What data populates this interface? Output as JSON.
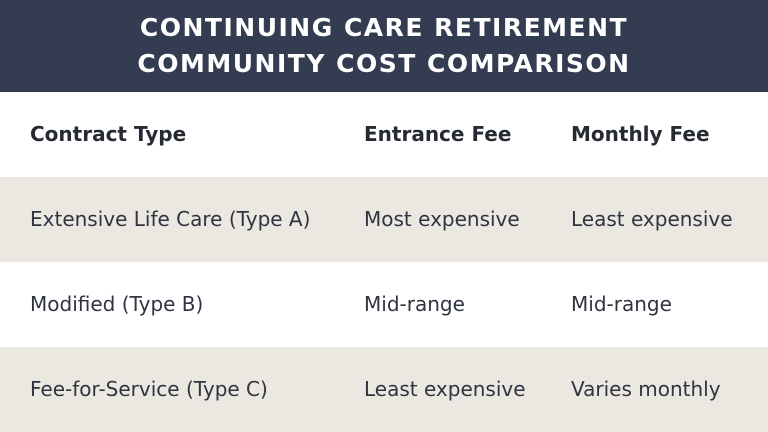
{
  "header": {
    "title_lines": [
      "CONTINUING CARE RETIREMENT",
      "COMMUNITY COST COMPARISON"
    ]
  },
  "table": {
    "columns": [
      "Contract Type",
      "Entrance Fee",
      "Monthly Fee"
    ],
    "rows": [
      [
        "Extensive Life Care (Type A)",
        "Most expensive",
        "Least expensive"
      ],
      [
        "Modified (Type B)",
        "Mid-range",
        "Mid-range"
      ],
      [
        "Fee-for-Service (Type C)",
        "Least expensive",
        "Varies monthly"
      ]
    ]
  }
}
